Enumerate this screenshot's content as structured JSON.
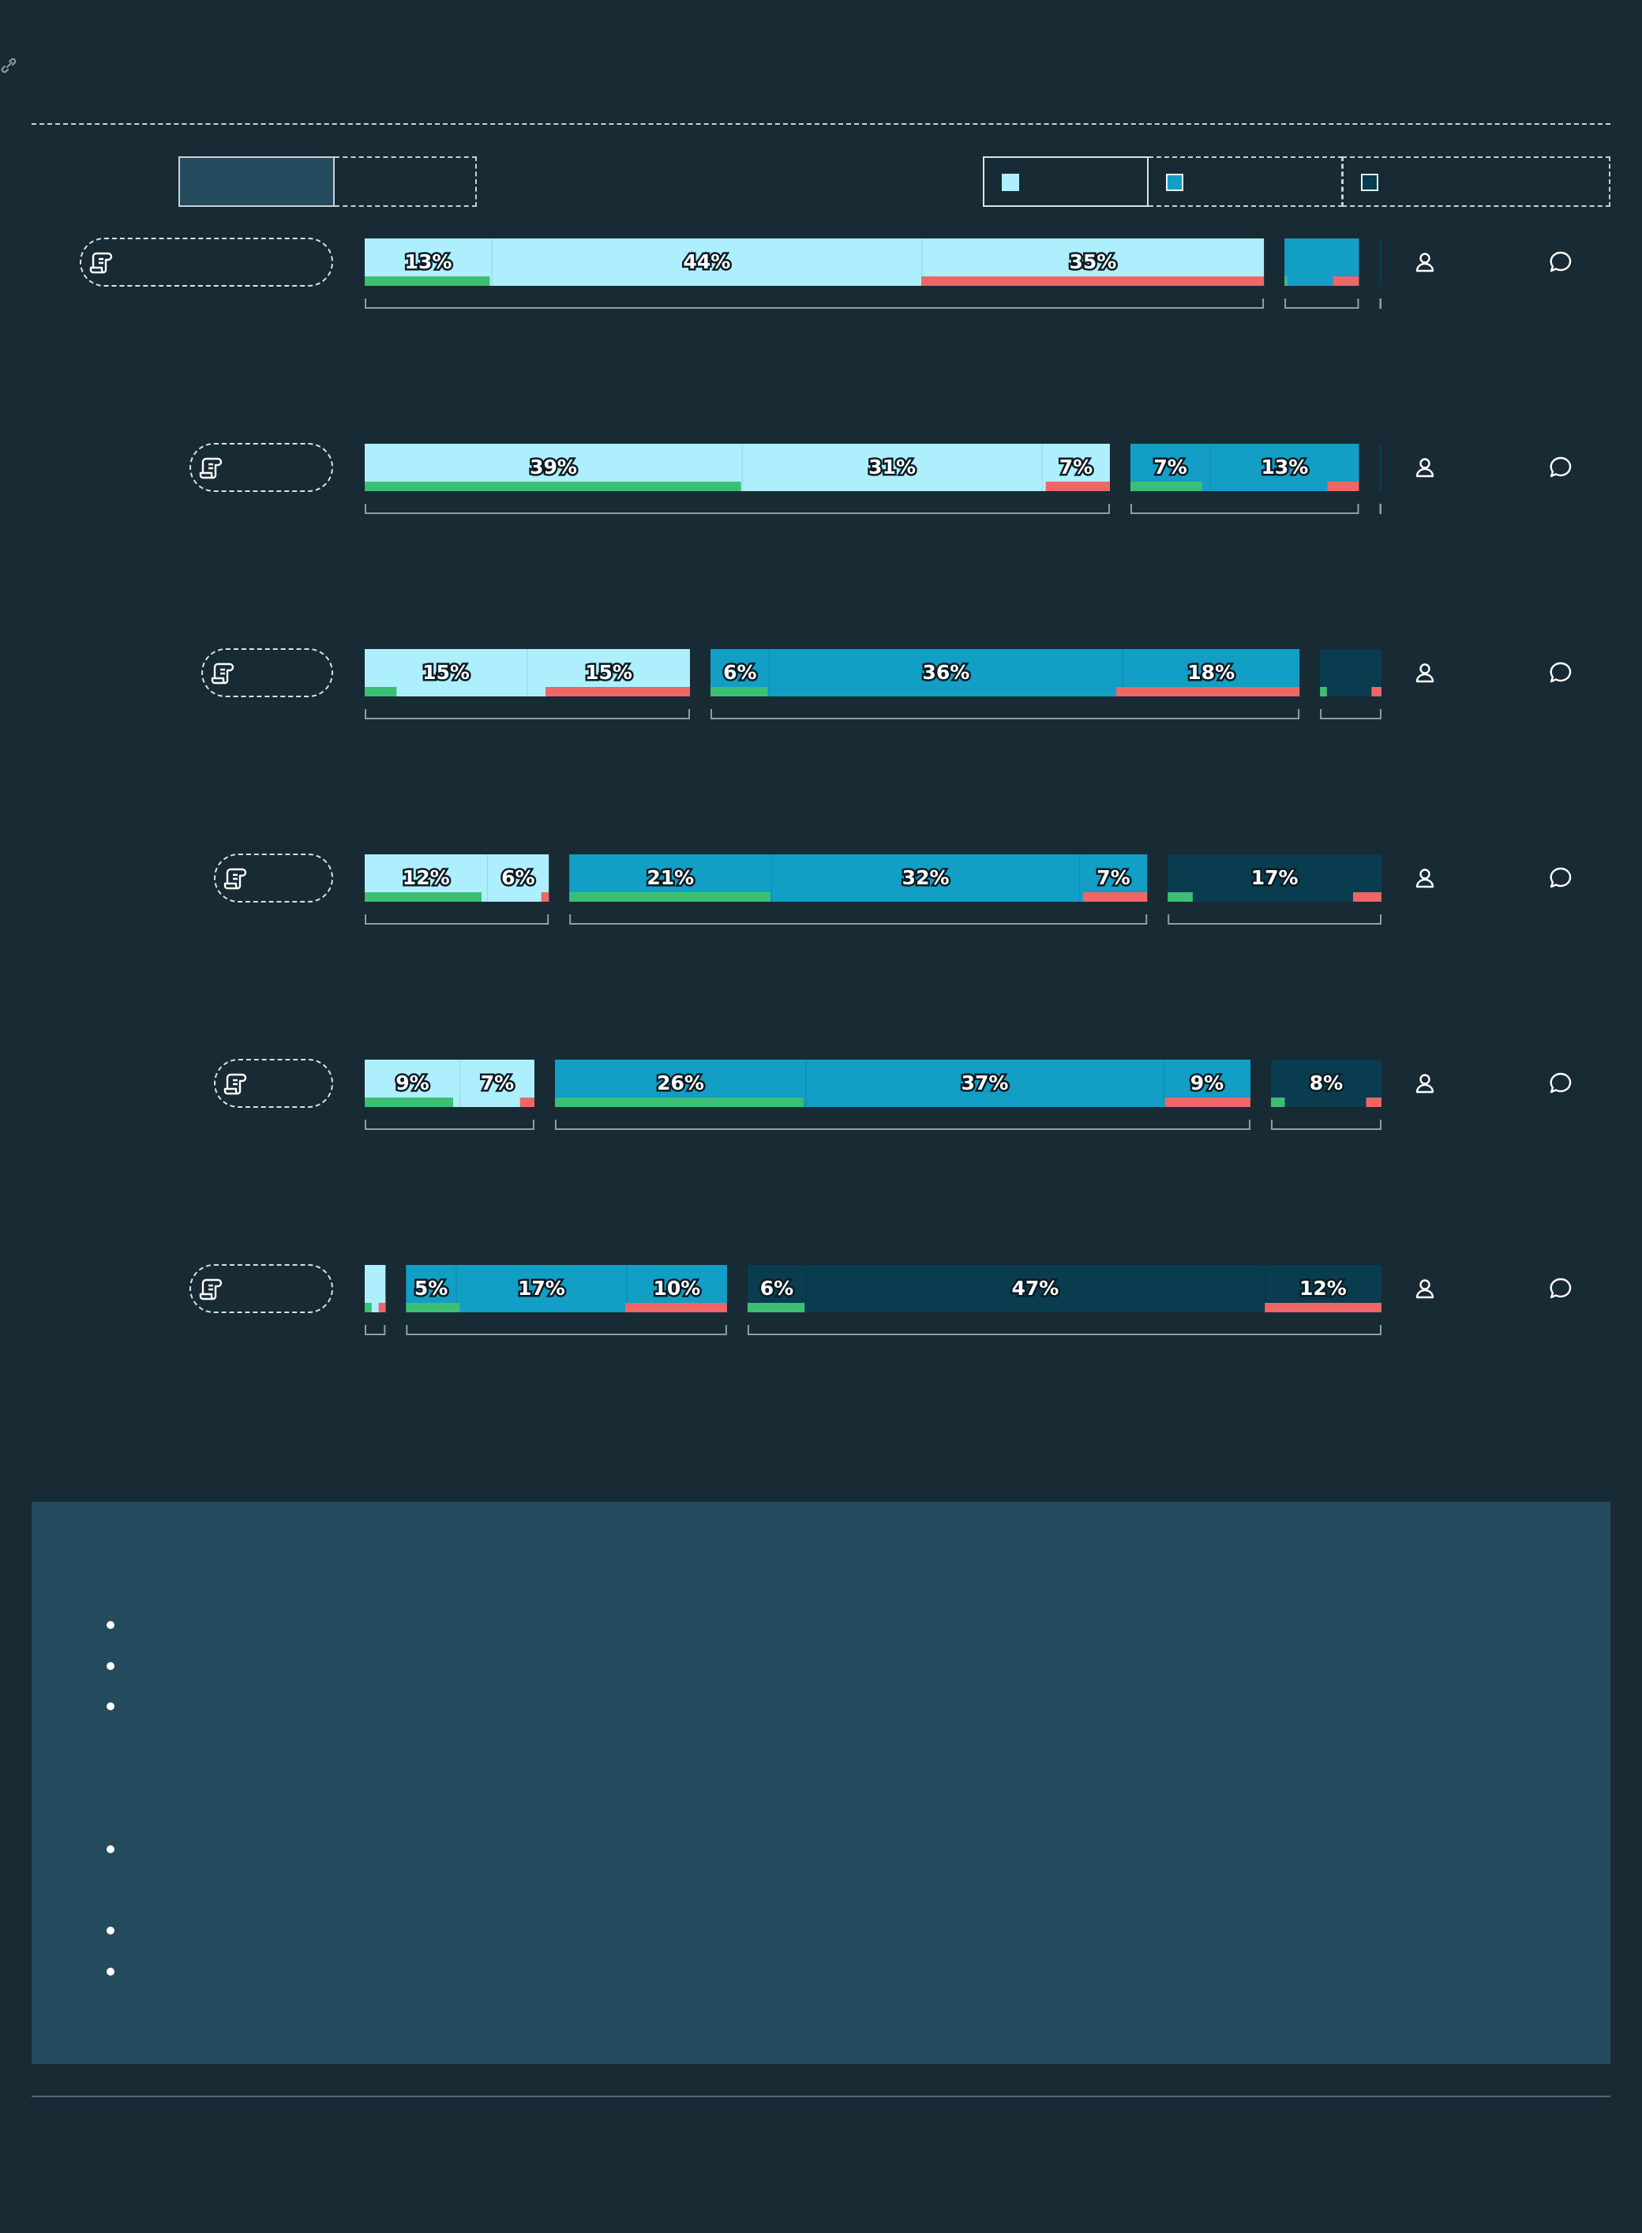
{
  "colors": {
    "background": "#182a34",
    "tier_1": "#aeeffe",
    "tier_2": "#129ec5",
    "tier_3": "#083c4e",
    "positive": "#3cbf73",
    "negative": "#ef6666",
    "panel": "#244a5e",
    "outline": "#d8e2e8"
  },
  "icons": {
    "link": "link-icon",
    "row": "scroll-icon",
    "person": "person-icon",
    "comment": "speech-bubble-icon"
  },
  "chart_data": {
    "type": "stacked-bar",
    "axis_range": [
      0,
      100
    ],
    "tiers": [
      "tier_1",
      "tier_2",
      "tier_3"
    ],
    "rows": [
      {
        "tiers": [
          {
            "tier": "tier_1",
            "share": 90.5,
            "segments": [
              13,
              44,
              35
            ],
            "labels": [
              "13%",
              "44%",
              "35%"
            ],
            "positive": 13.9,
            "negative": 38.1
          },
          {
            "tier": "tier_2",
            "share": 7.5,
            "segments": [
              7.5
            ],
            "labels": [],
            "positive": 3.8,
            "negative": 35
          },
          {
            "tier": "tier_3",
            "share": 0.2,
            "segments": [
              0.2
            ],
            "labels": [],
            "positive": 0,
            "negative": 0
          }
        ]
      },
      {
        "tiers": [
          {
            "tier": "tier_1",
            "share": 75.3,
            "segments": [
              39,
              31,
              7
            ],
            "labels": [
              "39%",
              "31%",
              "7%"
            ],
            "positive": 50.5,
            "negative": 8.6
          },
          {
            "tier": "tier_2",
            "share": 23.1,
            "segments": [
              7,
              13
            ],
            "labels": [
              "7%",
              "13%"
            ],
            "positive": 31.3,
            "negative": 13.8
          },
          {
            "tier": "tier_3",
            "share": 0.2,
            "segments": [
              0.2
            ],
            "labels": [],
            "positive": 0,
            "negative": 0
          }
        ]
      },
      {
        "tiers": [
          {
            "tier": "tier_1",
            "share": 32.8,
            "segments": [
              15,
              15
            ],
            "labels": [
              "15%",
              "15%"
            ],
            "positive": 9.8,
            "negative": 44.4
          },
          {
            "tier": "tier_2",
            "share": 59.4,
            "segments": [
              6,
              36,
              18
            ],
            "labels": [
              "6%",
              "36%",
              "18%"
            ],
            "positive": 9.7,
            "negative": 31.1
          },
          {
            "tier": "tier_3",
            "share": 6.2,
            "segments": [
              6.2
            ],
            "labels": [],
            "positive": 11.1,
            "negative": 16.3
          }
        ]
      },
      {
        "tiers": [
          {
            "tier": "tier_1",
            "share": 18.6,
            "segments": [
              12,
              6
            ],
            "labels": [
              "12%",
              "6%"
            ],
            "positive": 63.5,
            "negative": 4.1
          },
          {
            "tier": "tier_2",
            "share": 58.4,
            "segments": [
              21,
              32,
              7
            ],
            "labels": [
              "21%",
              "32%",
              "7%"
            ],
            "positive": 34.8,
            "negative": 11.1
          },
          {
            "tier": "tier_3",
            "share": 21.6,
            "segments": [
              17
            ],
            "labels": [
              "17%"
            ],
            "positive": 11.7,
            "negative": 13.3
          }
        ]
      },
      {
        "tiers": [
          {
            "tier": "tier_1",
            "share": 17.2,
            "segments": [
              9,
              7
            ],
            "labels": [
              "9%",
              "7%"
            ],
            "positive": 52.1,
            "negative": 8.5
          },
          {
            "tier": "tier_2",
            "share": 70.5,
            "segments": [
              26,
              37,
              9
            ],
            "labels": [
              "26%",
              "37%",
              "9%"
            ],
            "positive": 35.7,
            "negative": 12.3
          },
          {
            "tier": "tier_3",
            "share": 11.2,
            "segments": [
              8
            ],
            "labels": [
              "8%"
            ],
            "positive": 12.5,
            "negative": 13.9
          }
        ]
      },
      {
        "tiers": [
          {
            "tier": "tier_1",
            "share": 2.1,
            "segments": [
              1,
              1
            ],
            "labels": [],
            "positive": 33.3,
            "negative": 33.3
          },
          {
            "tier": "tier_2",
            "share": 32.4,
            "segments": [
              5,
              17,
              10
            ],
            "labels": [
              "5%",
              "17%",
              "10%"
            ],
            "positive": 16.7,
            "negative": 31.7
          },
          {
            "tier": "tier_3",
            "share": 64.0,
            "segments": [
              6,
              47,
              12
            ],
            "labels": [
              "6%",
              "47%",
              "12%"
            ],
            "positive": 9.0,
            "negative": 18.4
          }
        ]
      }
    ]
  }
}
